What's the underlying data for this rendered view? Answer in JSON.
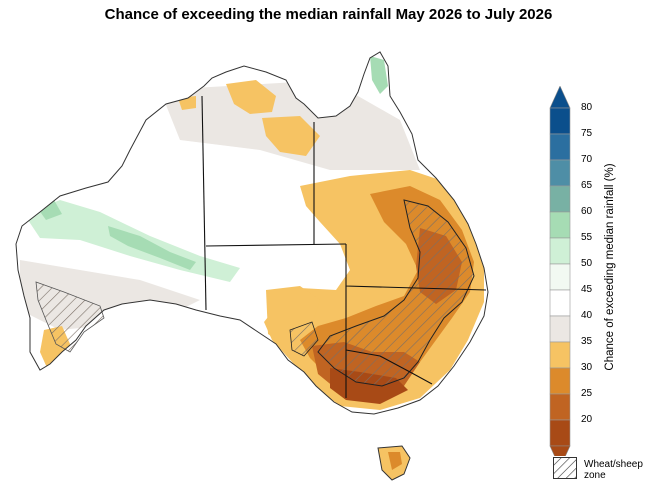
{
  "title": "Chance of exceeding the median rainfall May 2026 to July 2026",
  "colorbar": {
    "title": "Chance of exceeding median rainfall (%)",
    "ticks": [
      "80",
      "75",
      "70",
      "65",
      "60",
      "55",
      "50",
      "45",
      "40",
      "35",
      "30",
      "25",
      "20"
    ],
    "colors": [
      "#0b4f8c",
      "#2b6fa0",
      "#4e8ea6",
      "#78b1a4",
      "#a6dcb4",
      "#cff0d6",
      "#f2f9f2",
      "#ffffff",
      "#ebe7e3",
      "#f6c363",
      "#dc8a2b",
      "#c06422",
      "#a84a16"
    ]
  },
  "legend": {
    "label_line1": "Wheat/sheep",
    "label_line2": "zone"
  },
  "map_regions": {
    "land": "Australia",
    "states": [
      "WA",
      "NT",
      "SA",
      "QLD",
      "NSW",
      "VIC",
      "TAS"
    ]
  }
}
